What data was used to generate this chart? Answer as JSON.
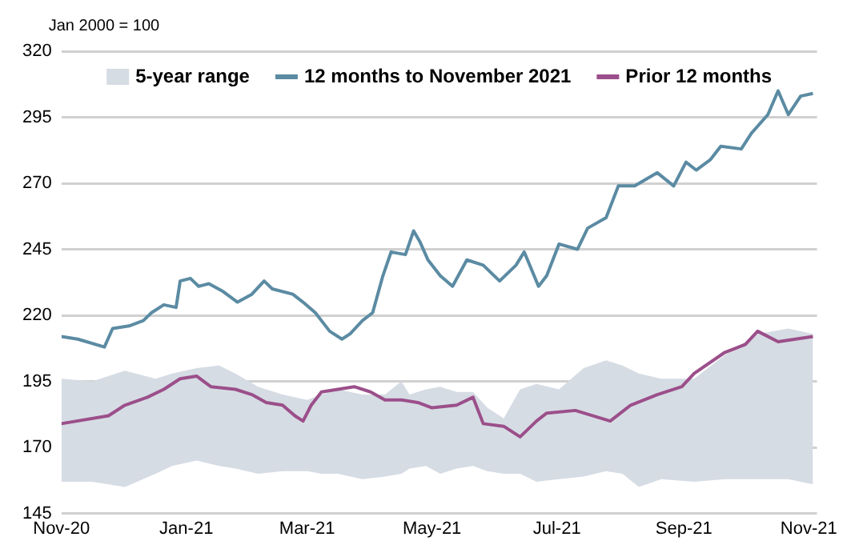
{
  "chart_data": {
    "type": "line",
    "annotations": [
      "Jan 2000 = 100"
    ],
    "xlim": [
      "2020-11-01",
      "2021-11-05"
    ],
    "xticks": [
      {
        "value": "2020-11-01",
        "label": "Nov-20"
      },
      {
        "value": "2021-01-01",
        "label": "Jan-21"
      },
      {
        "value": "2021-03-01",
        "label": "Mar-21"
      },
      {
        "value": "2021-05-01",
        "label": "May-21"
      },
      {
        "value": "2021-07-01",
        "label": "Jul-21"
      },
      {
        "value": "2021-09-01",
        "label": "Sep-21"
      },
      {
        "value": "2021-11-01",
        "label": "Nov-21"
      }
    ],
    "ylim": [
      145,
      320
    ],
    "yticks": [
      145,
      170,
      195,
      220,
      245,
      270,
      295,
      320
    ],
    "grid": "y",
    "legend": "top",
    "series": [
      {
        "name": "5-year range",
        "type": "area",
        "color": "#d6dce4",
        "x": [
          "2020-11-01",
          "2020-11-16",
          "2020-12-02",
          "2020-12-17",
          "2020-12-25",
          "2021-01-06",
          "2021-01-17",
          "2021-01-25",
          "2021-02-05",
          "2021-02-17",
          "2021-03-01",
          "2021-03-08",
          "2021-03-16",
          "2021-03-28",
          "2021-04-08",
          "2021-04-16",
          "2021-04-20",
          "2021-04-28",
          "2021-05-05",
          "2021-05-13",
          "2021-05-21",
          "2021-05-28",
          "2021-06-05",
          "2021-06-13",
          "2021-06-21",
          "2021-07-02",
          "2021-07-14",
          "2021-07-25",
          "2021-08-02",
          "2021-08-10",
          "2021-08-21",
          "2021-09-06",
          "2021-09-21",
          "2021-10-07",
          "2021-10-22",
          "2021-11-03"
        ],
        "upper": [
          196,
          195,
          199,
          196,
          198,
          200,
          201,
          198,
          193,
          190,
          188,
          190,
          192,
          190,
          190,
          195,
          190,
          192,
          193,
          191,
          191,
          185,
          181,
          192,
          194,
          192,
          200,
          203,
          201,
          198,
          196,
          196,
          205,
          213,
          215,
          213
        ],
        "lower": [
          157,
          157,
          155,
          160,
          163,
          165,
          163,
          162,
          160,
          161,
          161,
          160,
          160,
          158,
          159,
          160,
          162,
          163,
          160,
          162,
          163,
          161,
          160,
          160,
          157,
          158,
          159,
          161,
          160,
          155,
          158,
          157,
          158,
          158,
          158,
          156
        ],
        "values": [
          null,
          null,
          null,
          null,
          null,
          null,
          null,
          null,
          null,
          null,
          null,
          null,
          null,
          null,
          null,
          null,
          null,
          null,
          null,
          null,
          null,
          null,
          null,
          null,
          null,
          null,
          null,
          null,
          null,
          null,
          null,
          null,
          null,
          null,
          null,
          null
        ]
      },
      {
        "name": "12 months to November 2021",
        "type": "line",
        "color": "#5b8ba3",
        "x": [
          "2020-11-01",
          "2020-11-09",
          "2020-11-22",
          "2020-11-26",
          "2020-12-04",
          "2020-12-11",
          "2020-12-15",
          "2020-12-21",
          "2020-12-27",
          "2020-12-29",
          "2021-01-03",
          "2021-01-07",
          "2021-01-12",
          "2021-01-19",
          "2021-01-26",
          "2021-02-02",
          "2021-02-08",
          "2021-02-12",
          "2021-02-22",
          "2021-02-27",
          "2021-03-05",
          "2021-03-12",
          "2021-03-18",
          "2021-03-22",
          "2021-03-28",
          "2021-04-02",
          "2021-04-07",
          "2021-04-11",
          "2021-04-18",
          "2021-04-22",
          "2021-04-25",
          "2021-04-29",
          "2021-05-05",
          "2021-05-11",
          "2021-05-18",
          "2021-05-26",
          "2021-06-03",
          "2021-06-11",
          "2021-06-15",
          "2021-06-22",
          "2021-06-26",
          "2021-07-02",
          "2021-07-11",
          "2021-07-16",
          "2021-07-25",
          "2021-07-31",
          "2021-08-08",
          "2021-08-19",
          "2021-08-27",
          "2021-09-02",
          "2021-09-07",
          "2021-09-14",
          "2021-09-19",
          "2021-09-29",
          "2021-10-04",
          "2021-10-12",
          "2021-10-17",
          "2021-10-22",
          "2021-10-28",
          "2021-11-03"
        ],
        "values": [
          212,
          211,
          208,
          215,
          216,
          218,
          221,
          224,
          223,
          233,
          234,
          231,
          232,
          229,
          225,
          228,
          233,
          230,
          228,
          225,
          221,
          214,
          211,
          213,
          218,
          221,
          235,
          244,
          243,
          252,
          248,
          241,
          235,
          231,
          241,
          239,
          233,
          239,
          244,
          231,
          235,
          247,
          245,
          253,
          257,
          269,
          269,
          274,
          269,
          278,
          275,
          279,
          284,
          283,
          289,
          296,
          305,
          296,
          303,
          304
        ]
      },
      {
        "name": "Prior 12 months",
        "color": "#9b4f8a",
        "x": [
          "2020-11-01",
          "2020-11-24",
          "2020-12-02",
          "2020-12-13",
          "2020-12-21",
          "2020-12-29",
          "2021-01-06",
          "2021-01-13",
          "2021-01-25",
          "2021-02-02",
          "2021-02-09",
          "2021-02-17",
          "2021-02-23",
          "2021-02-27",
          "2021-03-03",
          "2021-03-08",
          "2021-03-16",
          "2021-03-24",
          "2021-04-01",
          "2021-04-08",
          "2021-04-16",
          "2021-04-24",
          "2021-05-01",
          "2021-05-13",
          "2021-05-21",
          "2021-05-26",
          "2021-06-05",
          "2021-06-13",
          "2021-06-21",
          "2021-06-26",
          "2021-07-10",
          "2021-07-27",
          "2021-08-06",
          "2021-08-19",
          "2021-08-31",
          "2021-09-06",
          "2021-09-21",
          "2021-10-01",
          "2021-10-07",
          "2021-10-17",
          "2021-11-03"
        ],
        "values": [
          179,
          182,
          186,
          189,
          192,
          196,
          197,
          193,
          192,
          190,
          187,
          186,
          182,
          180,
          186,
          191,
          192,
          193,
          191,
          188,
          188,
          187,
          185,
          186,
          189,
          179,
          178,
          174,
          180,
          183,
          184,
          180,
          186,
          190,
          193,
          198,
          206,
          209,
          214,
          210,
          212
        ]
      }
    ]
  }
}
